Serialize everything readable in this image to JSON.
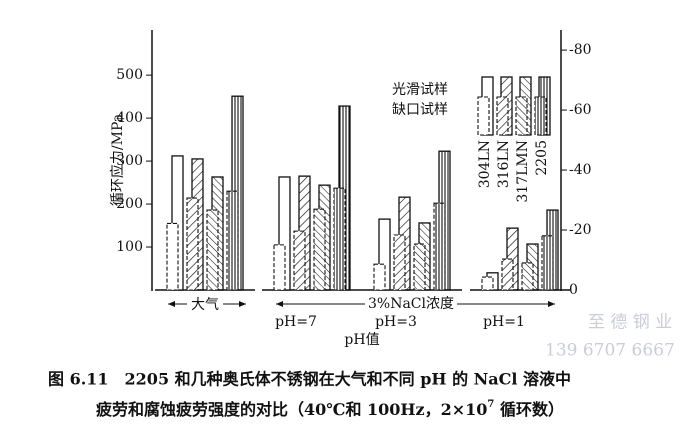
{
  "chart_data": {
    "type": "bar",
    "ylabel": "循环应力/MPa",
    "categories": [
      "大气",
      "pH=7",
      "pH=3",
      "pH=1"
    ],
    "series": [
      {
        "name": "304LN",
        "pattern": "none",
        "smooth": [
          312,
          263,
          165,
          40
        ],
        "notched": [
          155,
          105,
          60,
          30
        ]
      },
      {
        "name": "316LN",
        "pattern": "diag",
        "smooth": [
          305,
          265,
          216,
          144
        ],
        "notched": [
          214,
          137,
          128,
          72
        ]
      },
      {
        "name": "317LMN",
        "pattern": "back",
        "smooth": [
          263,
          244,
          156,
          107
        ],
        "notched": [
          186,
          188,
          107,
          63
        ]
      },
      {
        "name": "2205",
        "pattern": "vert",
        "smooth": [
          451,
          428,
          323,
          186
        ],
        "notched": [
          230,
          237,
          202,
          126
        ]
      }
    ],
    "specimen_types": [
      "光滑试样",
      "缺口试样"
    ],
    "ylim": [
      0,
      605
    ],
    "yticks": [
      100,
      200,
      300,
      400,
      500
    ],
    "y2lim": [
      0,
      -86.7
    ],
    "y2ticks": [
      0,
      -20,
      -40,
      -60,
      -80
    ],
    "solution_label": "3%NaCl浓度",
    "x_group_label": "pH值",
    "caption_line1": "图 6.11　2205 和几种奥氏体不锈钢在大气和不同 pH 的 NaCl 溶液中",
    "caption_line2": [
      "疲劳和腐蚀疲劳强度的对比（40℃和 100Hz，2×10",
      "7",
      " 循环数）"
    ],
    "watermark": [
      "至 德 钢 业",
      "139 6707 6667"
    ]
  }
}
